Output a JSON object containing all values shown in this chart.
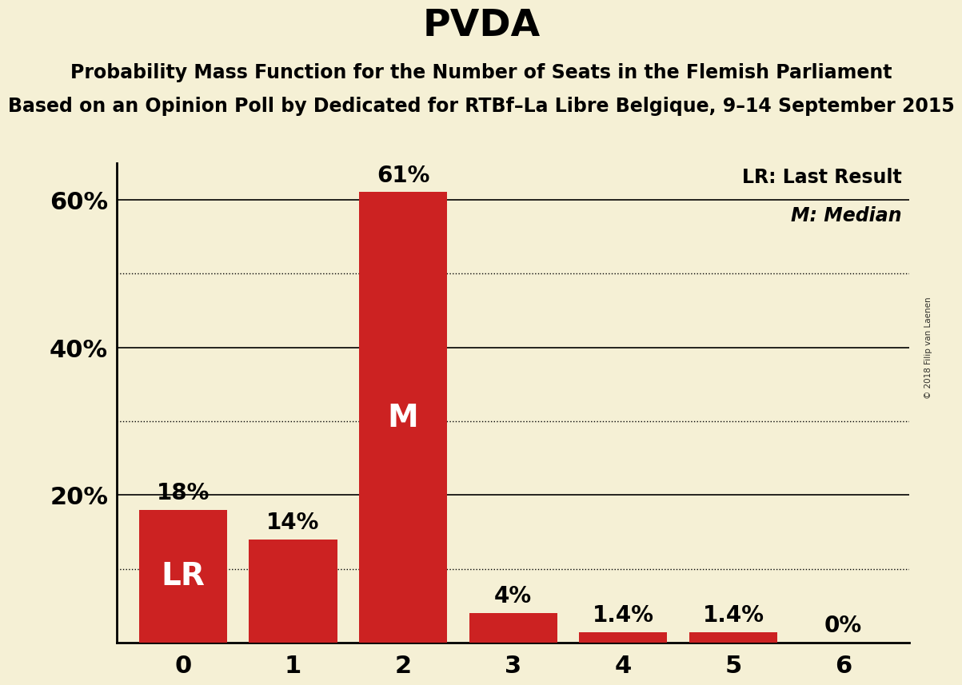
{
  "title": "PVDA",
  "subtitle1": "Probability Mass Function for the Number of Seats in the Flemish Parliament",
  "subtitle2": "Based on an Opinion Poll by Dedicated for RTBf–La Libre Belgique, 9–14 September 2015",
  "watermark": "© 2018 Filip van Laenen",
  "categories": [
    0,
    1,
    2,
    3,
    4,
    5,
    6
  ],
  "values": [
    18.0,
    14.0,
    61.0,
    4.0,
    1.4,
    1.4,
    0.0
  ],
  "bar_color": "#cc2222",
  "background_color": "#f5f0d5",
  "text_color": "#000000",
  "bar_label_inside": [
    "LR",
    "",
    "M",
    "",
    "",
    "",
    ""
  ],
  "bar_label_outside": [
    "18%",
    "14%",
    "61%",
    "4%",
    "1.4%",
    "1.4%",
    "0%"
  ],
  "legend_lr": "LR: Last Result",
  "legend_m": "M: Median",
  "ylim": [
    0,
    65
  ],
  "yticks": [
    0,
    20,
    40,
    60
  ],
  "ytick_labels": [
    "",
    "20%",
    "40%",
    "60%"
  ],
  "solid_gridlines": [
    20,
    40,
    60
  ],
  "dotted_gridlines": [
    10,
    30,
    50
  ],
  "xlabel_fontsize": 22,
  "ylabel_fontsize": 22,
  "title_fontsize": 34,
  "subtitle1_fontsize": 17,
  "subtitle2_fontsize": 17,
  "bar_label_fontsize_inside": 28,
  "bar_label_fontsize_outside": 20,
  "legend_fontsize": 17
}
